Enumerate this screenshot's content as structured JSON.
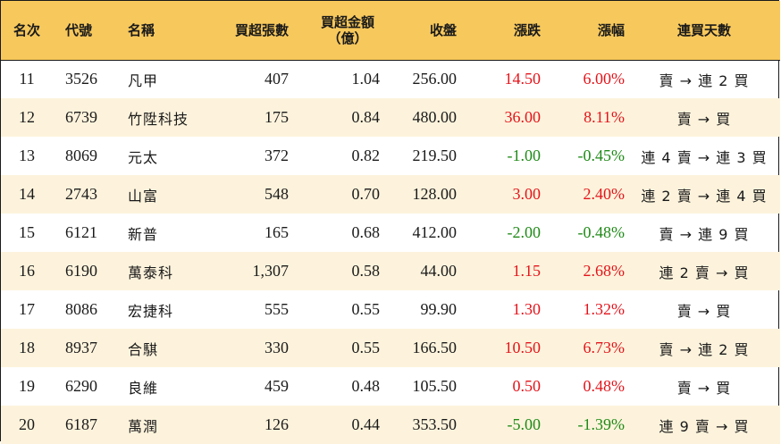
{
  "headers": {
    "rank": "名次",
    "code": "代號",
    "name": "名稱",
    "net_buy_lots": "買超張數",
    "net_buy_amount_line1": "買超金額",
    "net_buy_amount_line2": "（億）",
    "close": "收盤",
    "change": "漲跌",
    "change_pct": "漲幅",
    "streak": "連買天數"
  },
  "colors": {
    "header_bg": "#f7c85c",
    "alt_row_bg": "#fdf3dc",
    "up": "#e3141b",
    "down": "#1f8a17"
  },
  "rows": [
    {
      "rank": "11",
      "code": "3526",
      "name": "凡甲",
      "lots": "407",
      "amount": "1.04",
      "close": "256.00",
      "change": "14.50",
      "pct": "6.00%",
      "dir": "up",
      "streak": "賣 → 連 2 買"
    },
    {
      "rank": "12",
      "code": "6739",
      "name": "竹陞科技",
      "lots": "175",
      "amount": "0.84",
      "close": "480.00",
      "change": "36.00",
      "pct": "8.11%",
      "dir": "up",
      "streak": "賣 → 買"
    },
    {
      "rank": "13",
      "code": "8069",
      "name": "元太",
      "lots": "372",
      "amount": "0.82",
      "close": "219.50",
      "change": "-1.00",
      "pct": "-0.45%",
      "dir": "down",
      "streak": "連 4 賣 → 連 3 買"
    },
    {
      "rank": "14",
      "code": "2743",
      "name": "山富",
      "lots": "548",
      "amount": "0.70",
      "close": "128.00",
      "change": "3.00",
      "pct": "2.40%",
      "dir": "up",
      "streak": "連 2 賣 → 連 4 買"
    },
    {
      "rank": "15",
      "code": "6121",
      "name": "新普",
      "lots": "165",
      "amount": "0.68",
      "close": "412.00",
      "change": "-2.00",
      "pct": "-0.48%",
      "dir": "down",
      "streak": "賣 → 連 9 買"
    },
    {
      "rank": "16",
      "code": "6190",
      "name": "萬泰科",
      "lots": "1,307",
      "amount": "0.58",
      "close": "44.00",
      "change": "1.15",
      "pct": "2.68%",
      "dir": "up",
      "streak": "連 2 賣 → 買"
    },
    {
      "rank": "17",
      "code": "8086",
      "name": "宏捷科",
      "lots": "555",
      "amount": "0.55",
      "close": "99.90",
      "change": "1.30",
      "pct": "1.32%",
      "dir": "up",
      "streak": "賣 → 買"
    },
    {
      "rank": "18",
      "code": "8937",
      "name": "合騏",
      "lots": "330",
      "amount": "0.55",
      "close": "166.50",
      "change": "10.50",
      "pct": "6.73%",
      "dir": "up",
      "streak": "賣 → 連 2 買"
    },
    {
      "rank": "19",
      "code": "6290",
      "name": "良維",
      "lots": "459",
      "amount": "0.48",
      "close": "105.50",
      "change": "0.50",
      "pct": "0.48%",
      "dir": "up",
      "streak": "賣 → 買"
    },
    {
      "rank": "20",
      "code": "6187",
      "name": "萬潤",
      "lots": "126",
      "amount": "0.44",
      "close": "353.50",
      "change": "-5.00",
      "pct": "-1.39%",
      "dir": "down",
      "streak": "連 9 賣 → 買"
    }
  ]
}
